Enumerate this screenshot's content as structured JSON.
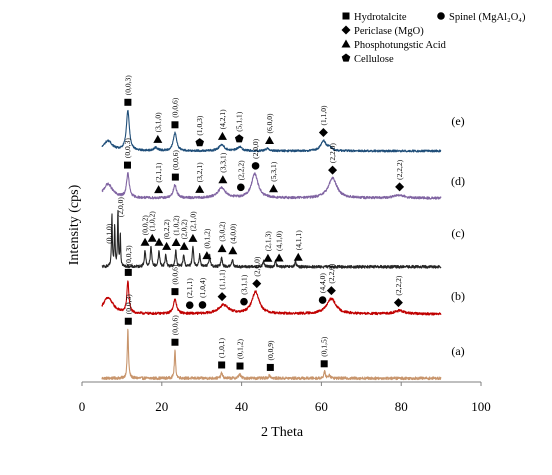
{
  "chart_data": {
    "type": "line",
    "xlabel": "2 Theta",
    "ylabel": "Intensity (cps)",
    "xlim": [
      0,
      100
    ],
    "xticks": [
      "0",
      "20",
      "40",
      "60",
      "80",
      "100"
    ],
    "legend": [
      {
        "name": "Hydrotalcite",
        "marker": "square"
      },
      {
        "name": "Spinel (MgAl₂O₄)",
        "marker": "circle"
      },
      {
        "name": "Periclase (MgO)",
        "marker": "diamond"
      },
      {
        "name": "Phosphotungstic Acid",
        "marker": "triangle"
      },
      {
        "name": "Cellulose",
        "marker": "pentagon"
      }
    ],
    "series": [
      {
        "name": "(a)",
        "color": "#c8956c",
        "baseline": 0.5,
        "noise": 0.8,
        "peaks": [
          [
            11.5,
            14,
            0.18
          ],
          [
            23.3,
            8,
            0.18
          ],
          [
            35,
            1.5,
            0.25
          ],
          [
            39.5,
            1.2,
            0.3
          ],
          [
            47,
            0.8,
            0.3
          ],
          [
            60.8,
            1.8,
            0.25
          ],
          [
            62,
            1.0,
            0.25
          ]
        ],
        "annotations": [
          {
            "x": 11.6,
            "label": "(0,0,3)",
            "marker": "square"
          },
          {
            "x": 23.3,
            "label": "(0,0,6)",
            "marker": "square"
          },
          {
            "x": 35,
            "label": "(1,0,1)",
            "marker": "square"
          },
          {
            "x": 39.6,
            "label": "(0,1,2)",
            "marker": "square"
          },
          {
            "x": 47.2,
            "label": "(0,0,9)",
            "marker": "square"
          },
          {
            "x": 60.7,
            "label": "(0,1,5)",
            "marker": "square"
          }
        ]
      },
      {
        "name": "(b)",
        "color": "#c00000",
        "baseline": 2.0,
        "noise": 0.6,
        "peaks": [
          [
            6.5,
            4,
            1.6
          ],
          [
            11.5,
            8,
            0.3
          ],
          [
            23.3,
            3.5,
            0.5
          ],
          [
            35.5,
            2.2,
            1.5
          ],
          [
            43.5,
            5.5,
            1.1
          ],
          [
            62.5,
            3.8,
            1.4
          ],
          [
            79.5,
            0.8,
            1.5
          ]
        ],
        "annotations": [
          {
            "x": 11.6,
            "label": "(0,0,3)",
            "marker": "square"
          },
          {
            "x": 23.3,
            "label": "(0,0,6)",
            "marker": "square"
          },
          {
            "x": 27,
            "label": "(2,1,1)",
            "marker": "circle"
          },
          {
            "x": 30.2,
            "label": "(1,0,4)",
            "marker": "circle"
          },
          {
            "x": 35.1,
            "label": "(1,1,1)",
            "marker": "diamond"
          },
          {
            "x": 40.6,
            "label": "(3,1,1)",
            "marker": "circle"
          },
          {
            "x": 43.8,
            "label": "(2,0,0)",
            "marker": "diamond"
          },
          {
            "x": 60.3,
            "label": "(4,4,0)",
            "marker": "circle"
          },
          {
            "x": 62.5,
            "label": "(2,2,0)",
            "marker": "diamond"
          },
          {
            "x": 79.3,
            "label": "(2,2,2)",
            "marker": "diamond"
          }
        ]
      },
      {
        "name": "(c)",
        "color": "#262626",
        "baseline": 0.3,
        "noise": 0.7,
        "peaks": [
          [
            7.5,
            13,
            0.12
          ],
          [
            8.2,
            10,
            0.12
          ],
          [
            9.0,
            14,
            0.12
          ],
          [
            9.6,
            8,
            0.12
          ],
          [
            15.8,
            4,
            0.2
          ],
          [
            17.3,
            5,
            0.2
          ],
          [
            19.3,
            4,
            0.2
          ],
          [
            21,
            3,
            0.2
          ],
          [
            23.5,
            4,
            0.2
          ],
          [
            25.5,
            3,
            0.2
          ],
          [
            27.8,
            5,
            0.2
          ],
          [
            29.5,
            3,
            0.2
          ],
          [
            32,
            3,
            0.2
          ],
          [
            35,
            2.5,
            0.2
          ],
          [
            37.7,
            2,
            0.2
          ],
          [
            45.5,
            1.5,
            0.2
          ],
          [
            48.5,
            1.4,
            0.2
          ],
          [
            53.5,
            1.2,
            0.2
          ]
        ],
        "annotations": [
          {
            "x": 6.8,
            "label": "(0,1,0)",
            "marker": "none"
          },
          {
            "x": 9.6,
            "label": "(2,0,0)",
            "marker": "none"
          },
          {
            "x": 15.8,
            "label": "(0,0,2)",
            "marker": "triangle"
          },
          {
            "x": 17.6,
            "label": "(1,0,2)",
            "marker": "triangle"
          },
          {
            "x": 19.3,
            "label": "",
            "marker": "triangle"
          },
          {
            "x": 21.2,
            "label": "(0,2,2)",
            "marker": "triangle"
          },
          {
            "x": 23.6,
            "label": "(1,0,2)",
            "marker": "triangle"
          },
          {
            "x": 25.6,
            "label": "(2,0,2)",
            "marker": "triangle"
          },
          {
            "x": 27.8,
            "label": "(2,1,0)",
            "marker": "triangle"
          },
          {
            "x": 31.3,
            "label": "(0,1,2)",
            "marker": "triangle"
          },
          {
            "x": 35.1,
            "label": "(3,0,2)",
            "marker": "triangle"
          },
          {
            "x": 37.8,
            "label": "(4,0,0)",
            "marker": "triangle"
          },
          {
            "x": 46.6,
            "label": "(2,1,3)",
            "marker": "triangle"
          },
          {
            "x": 49.4,
            "label": "(4,1,0)",
            "marker": "triangle"
          },
          {
            "x": 54.2,
            "label": "(4,1,1)",
            "marker": "triangle"
          }
        ]
      },
      {
        "name": "(d)",
        "color": "#8064a2",
        "baseline": 2.2,
        "noise": 0.6,
        "peaks": [
          [
            6.5,
            3.5,
            1.4
          ],
          [
            11.5,
            6.0,
            0.4
          ],
          [
            23.3,
            3.2,
            0.5
          ],
          [
            35,
            2.5,
            1.2
          ],
          [
            43.3,
            6.0,
            1.0
          ],
          [
            62.8,
            5.0,
            1.3
          ],
          [
            79.5,
            0.8,
            1.5
          ]
        ],
        "annotations": [
          {
            "x": 11.4,
            "label": "(0,0,3)",
            "marker": "square"
          },
          {
            "x": 19.2,
            "label": "(2,1,1)",
            "marker": "triangle"
          },
          {
            "x": 23.4,
            "label": "(0,0,6)",
            "marker": "square"
          },
          {
            "x": 29.5,
            "label": "(3,2,1)",
            "marker": "triangle"
          },
          {
            "x": 35.3,
            "label": "(3,3,1)",
            "marker": "triangle"
          },
          {
            "x": 39.8,
            "label": "(2,2,2)",
            "marker": "circle"
          },
          {
            "x": 43.5,
            "label": "(2,0,0)",
            "marker": "circle"
          },
          {
            "x": 48,
            "label": "(5,3,1)",
            "marker": "triangle"
          },
          {
            "x": 62.8,
            "label": "(2,2,0)",
            "marker": "diamond"
          },
          {
            "x": 79.6,
            "label": "(2,2,2)",
            "marker": "diamond"
          }
        ]
      },
      {
        "name": "(e)",
        "color": "#1f4e79",
        "baseline": 1.5,
        "noise": 0.5,
        "peaks": [
          [
            6.5,
            2.5,
            1.3
          ],
          [
            11.5,
            10,
            0.45
          ],
          [
            18.5,
            0.8,
            0.6
          ],
          [
            23.3,
            4.5,
            0.5
          ],
          [
            35,
            1.6,
            0.8
          ],
          [
            39.5,
            1.0,
            0.7
          ],
          [
            46.5,
            0.6,
            0.6
          ],
          [
            60.5,
            2.5,
            0.8
          ],
          [
            62,
            0.8,
            0.6
          ]
        ],
        "annotations": [
          {
            "x": 11.5,
            "label": "(0,0,3)",
            "marker": "square"
          },
          {
            "x": 19,
            "label": "(3,1,0)",
            "marker": "triangle"
          },
          {
            "x": 23.3,
            "label": "(0,0,6)",
            "marker": "square"
          },
          {
            "x": 29.5,
            "label": "(1,0,3)",
            "marker": "pentagon"
          },
          {
            "x": 35.2,
            "label": "(4,2,1)",
            "marker": "triangle"
          },
          {
            "x": 39.4,
            "label": "(5,1,1)",
            "marker": "pentagon"
          },
          {
            "x": 47,
            "label": "(6,0,0)",
            "marker": "triangle"
          },
          {
            "x": 60.5,
            "label": "(1,1,0)",
            "marker": "diamond"
          }
        ]
      }
    ]
  }
}
